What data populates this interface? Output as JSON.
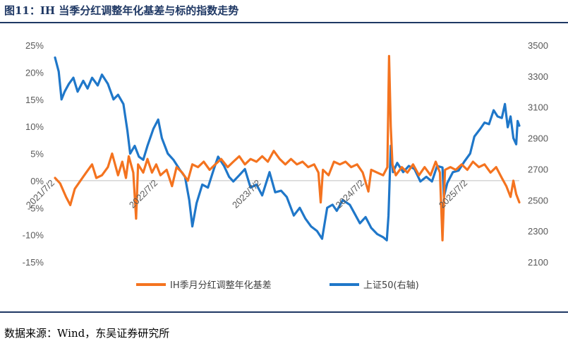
{
  "title": "图11：IH 当季分红调整年化基差与标的指数走势",
  "source": "数据来源：Wind，东吴证券研究所",
  "colors": {
    "basis": "#f4731f",
    "index": "#1f77c9",
    "title": "#1f3864"
  },
  "chart_data": {
    "type": "line",
    "y_left": {
      "ticks": [
        "25%",
        "20%",
        "15%",
        "10%",
        "5%",
        "0%",
        "-5%",
        "-10%",
        "-15%"
      ],
      "range": [
        -15,
        25
      ],
      "unit": "%"
    },
    "y_right": {
      "ticks": [
        "3500",
        "3300",
        "3100",
        "2900",
        "2700",
        "2500",
        "2300",
        "2100"
      ],
      "range": [
        2100,
        3500
      ]
    },
    "x_ticks": [
      "2021/7/2",
      "2022/7/2",
      "2023/7/2",
      "2024/7/2",
      "2025/7/2"
    ],
    "x_range": [
      "2021-07-02",
      "2025-12-31"
    ],
    "grid": false,
    "legend_position": "bottom",
    "series": [
      {
        "name": "IH季月分红调整年化基差",
        "axis": "left",
        "points": [
          [
            "2021-07-02",
            0.5
          ],
          [
            "2021-07-20",
            -0.5
          ],
          [
            "2021-08-10",
            -3.0
          ],
          [
            "2021-08-25",
            -4.5
          ],
          [
            "2021-09-10",
            -1.5
          ],
          [
            "2021-09-30",
            0.0
          ],
          [
            "2021-10-20",
            1.5
          ],
          [
            "2021-11-10",
            3.0
          ],
          [
            "2021-11-25",
            0.5
          ],
          [
            "2021-12-15",
            1.0
          ],
          [
            "2022-01-05",
            2.5
          ],
          [
            "2022-01-20",
            5.0
          ],
          [
            "2022-02-10",
            1.0
          ],
          [
            "2022-02-25",
            3.5
          ],
          [
            "2022-03-10",
            0.5
          ],
          [
            "2022-03-20",
            4.5
          ],
          [
            "2022-04-05",
            1.5
          ],
          [
            "2022-04-15",
            -7.0
          ],
          [
            "2022-04-22",
            3.0
          ],
          [
            "2022-05-10",
            1.5
          ],
          [
            "2022-05-25",
            4.0
          ],
          [
            "2022-06-10",
            1.5
          ],
          [
            "2022-06-25",
            3.0
          ],
          [
            "2022-07-10",
            1.0
          ],
          [
            "2022-08-01",
            2.0
          ],
          [
            "2022-08-20",
            -1.0
          ],
          [
            "2022-09-05",
            2.5
          ],
          [
            "2022-09-25",
            1.5
          ],
          [
            "2022-10-15",
            0.0
          ],
          [
            "2022-10-31",
            3.0
          ],
          [
            "2022-11-20",
            2.5
          ],
          [
            "2022-12-10",
            3.5
          ],
          [
            "2022-12-31",
            2.0
          ],
          [
            "2023-01-20",
            3.0
          ],
          [
            "2023-02-10",
            4.0
          ],
          [
            "2023-03-05",
            2.5
          ],
          [
            "2023-03-25",
            3.5
          ],
          [
            "2023-04-15",
            4.5
          ],
          [
            "2023-05-05",
            3.0
          ],
          [
            "2023-05-25",
            4.0
          ],
          [
            "2023-06-15",
            3.5
          ],
          [
            "2023-07-05",
            4.5
          ],
          [
            "2023-07-25",
            3.5
          ],
          [
            "2023-08-15",
            5.5
          ],
          [
            "2023-09-05",
            4.0
          ],
          [
            "2023-09-25",
            3.0
          ],
          [
            "2023-10-15",
            4.0
          ],
          [
            "2023-11-05",
            3.0
          ],
          [
            "2023-11-25",
            3.5
          ],
          [
            "2023-12-15",
            2.5
          ],
          [
            "2024-01-05",
            3.0
          ],
          [
            "2024-01-20",
            1.5
          ],
          [
            "2024-01-28",
            -4.0
          ],
          [
            "2024-02-05",
            2.0
          ],
          [
            "2024-02-25",
            1.0
          ],
          [
            "2024-03-15",
            3.5
          ],
          [
            "2024-04-05",
            3.0
          ],
          [
            "2024-04-25",
            3.5
          ],
          [
            "2024-05-15",
            2.5
          ],
          [
            "2024-06-05",
            3.0
          ],
          [
            "2024-06-25",
            1.5
          ],
          [
            "2024-07-15",
            -2.0
          ],
          [
            "2024-07-25",
            2.0
          ],
          [
            "2024-08-15",
            1.5
          ],
          [
            "2024-09-05",
            1.0
          ],
          [
            "2024-09-20",
            2.5
          ],
          [
            "2024-09-26",
            23.0
          ],
          [
            "2024-10-02",
            10.0
          ],
          [
            "2024-10-08",
            3.0
          ],
          [
            "2024-10-20",
            1.0
          ],
          [
            "2024-11-10",
            2.5
          ],
          [
            "2024-11-30",
            1.5
          ],
          [
            "2024-12-20",
            3.0
          ],
          [
            "2025-01-10",
            1.0
          ],
          [
            "2025-01-30",
            2.5
          ],
          [
            "2025-02-20",
            1.0
          ],
          [
            "2025-03-10",
            3.5
          ],
          [
            "2025-03-25",
            1.5
          ],
          [
            "2025-04-03",
            -11.0
          ],
          [
            "2025-04-12",
            2.0
          ],
          [
            "2025-05-01",
            2.5
          ],
          [
            "2025-05-20",
            2.0
          ],
          [
            "2025-06-10",
            3.0
          ],
          [
            "2025-06-30",
            2.0
          ],
          [
            "2025-07-20",
            3.5
          ],
          [
            "2025-08-10",
            2.5
          ],
          [
            "2025-08-30",
            3.0
          ],
          [
            "2025-09-20",
            1.5
          ],
          [
            "2025-10-10",
            2.5
          ],
          [
            "2025-10-30",
            0.5
          ],
          [
            "2025-11-15",
            -1.0
          ],
          [
            "2025-11-30",
            -3.0
          ],
          [
            "2025-12-10",
            0.0
          ],
          [
            "2025-12-20",
            -2.5
          ],
          [
            "2025-12-31",
            -4.0
          ]
        ]
      },
      {
        "name": "上证50(右轴)",
        "axis": "right",
        "points": [
          [
            "2021-07-02",
            3420
          ],
          [
            "2021-07-15",
            3330
          ],
          [
            "2021-07-25",
            3150
          ],
          [
            "2021-08-05",
            3200
          ],
          [
            "2021-08-20",
            3250
          ],
          [
            "2021-09-05",
            3290
          ],
          [
            "2021-09-20",
            3200
          ],
          [
            "2021-10-10",
            3270
          ],
          [
            "2021-10-25",
            3220
          ],
          [
            "2021-11-10",
            3290
          ],
          [
            "2021-11-30",
            3240
          ],
          [
            "2021-12-15",
            3310
          ],
          [
            "2022-01-05",
            3250
          ],
          [
            "2022-01-25",
            3150
          ],
          [
            "2022-02-10",
            3180
          ],
          [
            "2022-03-01",
            3120
          ],
          [
            "2022-03-15",
            2950
          ],
          [
            "2022-03-25",
            2800
          ],
          [
            "2022-04-10",
            2850
          ],
          [
            "2022-04-25",
            2780
          ],
          [
            "2022-05-10",
            2760
          ],
          [
            "2022-05-25",
            2850
          ],
          [
            "2022-06-15",
            2960
          ],
          [
            "2022-07-02",
            3020
          ],
          [
            "2022-07-15",
            2900
          ],
          [
            "2022-08-05",
            2800
          ],
          [
            "2022-08-25",
            2760
          ],
          [
            "2022-09-15",
            2700
          ],
          [
            "2022-10-05",
            2650
          ],
          [
            "2022-10-20",
            2500
          ],
          [
            "2022-10-31",
            2330
          ],
          [
            "2022-11-15",
            2480
          ],
          [
            "2022-12-05",
            2600
          ],
          [
            "2022-12-25",
            2580
          ],
          [
            "2023-01-15",
            2700
          ],
          [
            "2023-01-30",
            2780
          ],
          [
            "2023-02-20",
            2720
          ],
          [
            "2023-03-10",
            2650
          ],
          [
            "2023-03-25",
            2620
          ],
          [
            "2023-04-15",
            2660
          ],
          [
            "2023-05-05",
            2700
          ],
          [
            "2023-05-25",
            2580
          ],
          [
            "2023-06-15",
            2600
          ],
          [
            "2023-07-05",
            2530
          ],
          [
            "2023-07-31",
            2680
          ],
          [
            "2023-08-20",
            2550
          ],
          [
            "2023-09-10",
            2560
          ],
          [
            "2023-09-30",
            2520
          ],
          [
            "2023-10-25",
            2400
          ],
          [
            "2023-11-15",
            2450
          ],
          [
            "2023-12-05",
            2380
          ],
          [
            "2023-12-25",
            2330
          ],
          [
            "2024-01-15",
            2300
          ],
          [
            "2024-02-02",
            2250
          ],
          [
            "2024-02-20",
            2450
          ],
          [
            "2024-03-10",
            2470
          ],
          [
            "2024-03-25",
            2430
          ],
          [
            "2024-04-15",
            2500
          ],
          [
            "2024-05-10",
            2470
          ],
          [
            "2024-05-25",
            2420
          ],
          [
            "2024-06-15",
            2350
          ],
          [
            "2024-07-05",
            2390
          ],
          [
            "2024-07-25",
            2320
          ],
          [
            "2024-08-15",
            2280
          ],
          [
            "2024-09-05",
            2260
          ],
          [
            "2024-09-18",
            2240
          ],
          [
            "2024-09-24",
            2400
          ],
          [
            "2024-10-02",
            2850
          ],
          [
            "2024-10-10",
            2680
          ],
          [
            "2024-10-25",
            2740
          ],
          [
            "2024-11-15",
            2680
          ],
          [
            "2024-12-05",
            2720
          ],
          [
            "2024-12-25",
            2700
          ],
          [
            "2025-01-15",
            2620
          ],
          [
            "2025-02-05",
            2650
          ],
          [
            "2025-02-25",
            2620
          ],
          [
            "2025-03-15",
            2720
          ],
          [
            "2025-04-03",
            2710
          ],
          [
            "2025-04-08",
            2520
          ],
          [
            "2025-04-20",
            2610
          ],
          [
            "2025-05-10",
            2680
          ],
          [
            "2025-05-30",
            2690
          ],
          [
            "2025-06-20",
            2750
          ],
          [
            "2025-07-10",
            2800
          ],
          [
            "2025-07-25",
            2910
          ],
          [
            "2025-08-15",
            2960
          ],
          [
            "2025-08-30",
            3000
          ],
          [
            "2025-09-15",
            2990
          ],
          [
            "2025-10-01",
            3080
          ],
          [
            "2025-10-15",
            3040
          ],
          [
            "2025-10-30",
            3030
          ],
          [
            "2025-11-10",
            3120
          ],
          [
            "2025-11-20",
            2970
          ],
          [
            "2025-11-30",
            3040
          ],
          [
            "2025-12-10",
            2900
          ],
          [
            "2025-12-20",
            2860
          ],
          [
            "2025-12-25",
            3010
          ],
          [
            "2025-12-31",
            2980
          ]
        ]
      }
    ]
  }
}
